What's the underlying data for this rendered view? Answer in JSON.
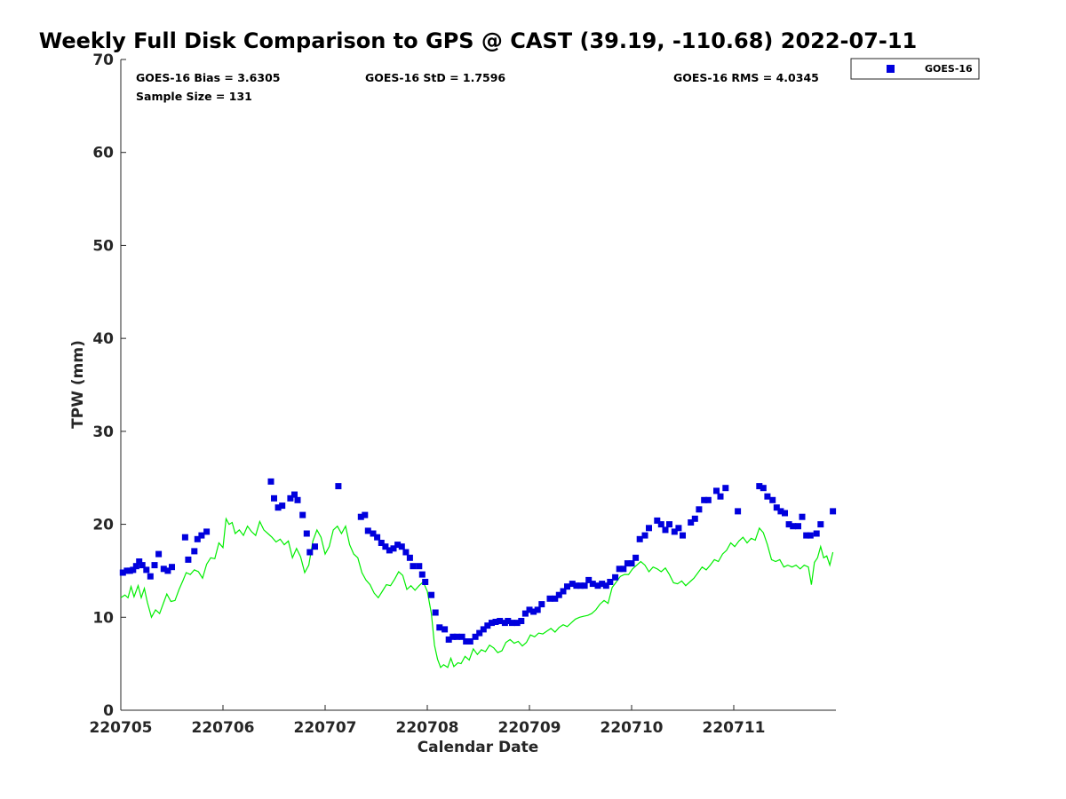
{
  "chart_data": {
    "type": "scatter",
    "title": "Weekly Full Disk Comparison to GPS @ CAST (39.19, -110.68) 2022-07-11",
    "xlabel": "Calendar Date",
    "ylabel": "TPW (mm)",
    "ylim": [
      0,
      70
    ],
    "yticks": [
      0,
      10,
      20,
      30,
      40,
      50,
      60,
      70
    ],
    "xticks": [
      "220705",
      "220706",
      "220707",
      "220708",
      "220709",
      "220710",
      "220711"
    ],
    "xlim_days": [
      5,
      12
    ],
    "grid": false,
    "legend_position": "top-right",
    "stats": {
      "bias": "GOES-16 Bias = 3.6305",
      "std": "GOES-16 StD = 1.7596",
      "rms": "GOES-16 RMS = 4.0345",
      "sample": "Sample Size = 131"
    },
    "series": [
      {
        "name": "GOES-16",
        "kind": "scatter",
        "color": "#0000dd",
        "marker": "square",
        "points": [
          [
            5.02,
            14.8
          ],
          [
            5.06,
            15.0
          ],
          [
            5.09,
            15.0
          ],
          [
            5.12,
            15.1
          ],
          [
            5.15,
            15.5
          ],
          [
            5.18,
            16.0
          ],
          [
            5.21,
            15.6
          ],
          [
            5.25,
            15.1
          ],
          [
            5.29,
            14.4
          ],
          [
            5.33,
            15.6
          ],
          [
            5.37,
            16.8
          ],
          [
            5.42,
            15.2
          ],
          [
            5.46,
            15.0
          ],
          [
            5.5,
            15.4
          ],
          [
            5.63,
            18.6
          ],
          [
            5.66,
            16.2
          ],
          [
            5.72,
            17.1
          ],
          [
            5.75,
            18.4
          ],
          [
            5.79,
            18.8
          ],
          [
            5.84,
            19.2
          ],
          [
            6.47,
            24.6
          ],
          [
            6.5,
            22.8
          ],
          [
            6.54,
            21.8
          ],
          [
            6.58,
            22.0
          ],
          [
            6.66,
            22.8
          ],
          [
            6.7,
            23.2
          ],
          [
            6.73,
            22.6
          ],
          [
            6.78,
            21.0
          ],
          [
            6.82,
            19.0
          ],
          [
            6.85,
            17.0
          ],
          [
            6.9,
            17.6
          ],
          [
            7.13,
            24.1
          ],
          [
            7.35,
            20.8
          ],
          [
            7.39,
            21.0
          ],
          [
            7.42,
            19.3
          ],
          [
            7.47,
            19.0
          ],
          [
            7.51,
            18.6
          ],
          [
            7.55,
            18.0
          ],
          [
            7.59,
            17.6
          ],
          [
            7.63,
            17.2
          ],
          [
            7.67,
            17.4
          ],
          [
            7.71,
            17.8
          ],
          [
            7.75,
            17.6
          ],
          [
            7.79,
            17.0
          ],
          [
            7.83,
            16.4
          ],
          [
            7.86,
            15.5
          ],
          [
            7.92,
            15.5
          ],
          [
            7.95,
            14.6
          ],
          [
            7.98,
            13.8
          ],
          [
            8.04,
            12.4
          ],
          [
            8.08,
            10.5
          ],
          [
            8.12,
            8.9
          ],
          [
            8.17,
            8.7
          ],
          [
            8.21,
            7.6
          ],
          [
            8.25,
            7.9
          ],
          [
            8.29,
            7.9
          ],
          [
            8.34,
            7.9
          ],
          [
            8.38,
            7.4
          ],
          [
            8.42,
            7.4
          ],
          [
            8.47,
            7.9
          ],
          [
            8.51,
            8.3
          ],
          [
            8.55,
            8.7
          ],
          [
            8.59,
            9.1
          ],
          [
            8.63,
            9.4
          ],
          [
            8.67,
            9.5
          ],
          [
            8.71,
            9.6
          ],
          [
            8.76,
            9.4
          ],
          [
            8.79,
            9.6
          ],
          [
            8.83,
            9.4
          ],
          [
            8.88,
            9.4
          ],
          [
            8.92,
            9.6
          ],
          [
            8.96,
            10.4
          ],
          [
            9.0,
            10.8
          ],
          [
            9.04,
            10.6
          ],
          [
            9.08,
            10.8
          ],
          [
            9.12,
            11.4
          ],
          [
            9.2,
            12.0
          ],
          [
            9.25,
            12.0
          ],
          [
            9.29,
            12.4
          ],
          [
            9.33,
            12.8
          ],
          [
            9.37,
            13.3
          ],
          [
            9.42,
            13.6
          ],
          [
            9.46,
            13.4
          ],
          [
            9.5,
            13.4
          ],
          [
            9.54,
            13.4
          ],
          [
            9.58,
            14.0
          ],
          [
            9.62,
            13.6
          ],
          [
            9.67,
            13.4
          ],
          [
            9.71,
            13.6
          ],
          [
            9.75,
            13.4
          ],
          [
            9.79,
            13.8
          ],
          [
            9.84,
            14.3
          ],
          [
            9.88,
            15.2
          ],
          [
            9.92,
            15.2
          ],
          [
            9.96,
            15.8
          ],
          [
            10.0,
            15.8
          ],
          [
            10.04,
            16.4
          ],
          [
            10.08,
            18.4
          ],
          [
            10.13,
            18.8
          ],
          [
            10.17,
            19.6
          ],
          [
            10.25,
            20.4
          ],
          [
            10.29,
            20.0
          ],
          [
            10.33,
            19.4
          ],
          [
            10.37,
            20.0
          ],
          [
            10.42,
            19.2
          ],
          [
            10.46,
            19.6
          ],
          [
            10.5,
            18.8
          ],
          [
            10.58,
            20.2
          ],
          [
            10.62,
            20.6
          ],
          [
            10.66,
            21.6
          ],
          [
            10.71,
            22.6
          ],
          [
            10.75,
            22.6
          ],
          [
            10.83,
            23.6
          ],
          [
            10.87,
            23.0
          ],
          [
            10.92,
            23.9
          ],
          [
            11.04,
            21.4
          ],
          [
            11.25,
            24.1
          ],
          [
            11.29,
            23.9
          ],
          [
            11.33,
            23.0
          ],
          [
            11.38,
            22.6
          ],
          [
            11.42,
            21.8
          ],
          [
            11.46,
            21.4
          ],
          [
            11.5,
            21.2
          ],
          [
            11.54,
            20.0
          ],
          [
            11.58,
            19.8
          ],
          [
            11.63,
            19.8
          ],
          [
            11.67,
            20.8
          ],
          [
            11.71,
            18.8
          ],
          [
            11.75,
            18.8
          ],
          [
            11.81,
            19.0
          ],
          [
            11.85,
            20.0
          ],
          [
            11.97,
            21.4
          ]
        ]
      },
      {
        "name": "",
        "kind": "line",
        "color": "#00ee00",
        "points": [
          [
            5.0,
            12.1
          ],
          [
            5.04,
            12.4
          ],
          [
            5.07,
            12.1
          ],
          [
            5.1,
            13.3
          ],
          [
            5.13,
            12.2
          ],
          [
            5.17,
            13.4
          ],
          [
            5.2,
            12.1
          ],
          [
            5.23,
            13.1
          ],
          [
            5.26,
            11.6
          ],
          [
            5.3,
            10.0
          ],
          [
            5.34,
            10.8
          ],
          [
            5.38,
            10.4
          ],
          [
            5.42,
            11.6
          ],
          [
            5.45,
            12.5
          ],
          [
            5.49,
            11.7
          ],
          [
            5.53,
            11.8
          ],
          [
            5.57,
            13.0
          ],
          [
            5.61,
            14.0
          ],
          [
            5.64,
            14.8
          ],
          [
            5.68,
            14.6
          ],
          [
            5.72,
            15.1
          ],
          [
            5.76,
            14.9
          ],
          [
            5.8,
            14.2
          ],
          [
            5.84,
            15.7
          ],
          [
            5.88,
            16.4
          ],
          [
            5.92,
            16.3
          ],
          [
            5.96,
            18.0
          ],
          [
            6.0,
            17.5
          ],
          [
            6.03,
            20.6
          ],
          [
            6.06,
            20.0
          ],
          [
            6.09,
            20.2
          ],
          [
            6.12,
            19.0
          ],
          [
            6.16,
            19.4
          ],
          [
            6.2,
            18.8
          ],
          [
            6.24,
            19.8
          ],
          [
            6.28,
            19.2
          ],
          [
            6.32,
            18.8
          ],
          [
            6.36,
            20.3
          ],
          [
            6.4,
            19.4
          ],
          [
            6.44,
            19.0
          ],
          [
            6.48,
            18.6
          ],
          [
            6.52,
            18.1
          ],
          [
            6.56,
            18.4
          ],
          [
            6.6,
            17.8
          ],
          [
            6.64,
            18.2
          ],
          [
            6.68,
            16.4
          ],
          [
            6.72,
            17.4
          ],
          [
            6.76,
            16.5
          ],
          [
            6.8,
            14.8
          ],
          [
            6.84,
            15.6
          ],
          [
            6.88,
            18.2
          ],
          [
            6.92,
            19.4
          ],
          [
            6.96,
            18.6
          ],
          [
            7.0,
            16.8
          ],
          [
            7.04,
            17.6
          ],
          [
            7.08,
            19.4
          ],
          [
            7.12,
            19.8
          ],
          [
            7.16,
            19.0
          ],
          [
            7.2,
            19.8
          ],
          [
            7.24,
            17.8
          ],
          [
            7.28,
            16.8
          ],
          [
            7.32,
            16.4
          ],
          [
            7.36,
            14.8
          ],
          [
            7.4,
            14.0
          ],
          [
            7.44,
            13.5
          ],
          [
            7.48,
            12.6
          ],
          [
            7.52,
            12.1
          ],
          [
            7.56,
            12.8
          ],
          [
            7.6,
            13.5
          ],
          [
            7.64,
            13.4
          ],
          [
            7.68,
            14.1
          ],
          [
            7.72,
            14.9
          ],
          [
            7.76,
            14.5
          ],
          [
            7.8,
            13.0
          ],
          [
            7.84,
            13.4
          ],
          [
            7.88,
            12.9
          ],
          [
            7.92,
            13.4
          ],
          [
            7.96,
            13.8
          ],
          [
            8.0,
            12.8
          ],
          [
            8.04,
            10.4
          ],
          [
            8.07,
            7.0
          ],
          [
            8.1,
            5.5
          ],
          [
            8.13,
            4.6
          ],
          [
            8.16,
            4.9
          ],
          [
            8.2,
            4.6
          ],
          [
            8.23,
            5.6
          ],
          [
            8.26,
            4.7
          ],
          [
            8.3,
            5.1
          ],
          [
            8.33,
            5.0
          ],
          [
            8.37,
            5.8
          ],
          [
            8.41,
            5.4
          ],
          [
            8.45,
            6.6
          ],
          [
            8.49,
            6.0
          ],
          [
            8.53,
            6.5
          ],
          [
            8.57,
            6.3
          ],
          [
            8.61,
            7.0
          ],
          [
            8.65,
            6.7
          ],
          [
            8.69,
            6.2
          ],
          [
            8.73,
            6.4
          ],
          [
            8.77,
            7.3
          ],
          [
            8.81,
            7.6
          ],
          [
            8.85,
            7.2
          ],
          [
            8.89,
            7.4
          ],
          [
            8.93,
            6.9
          ],
          [
            8.97,
            7.3
          ],
          [
            9.01,
            8.1
          ],
          [
            9.05,
            7.9
          ],
          [
            9.09,
            8.3
          ],
          [
            9.13,
            8.2
          ],
          [
            9.17,
            8.5
          ],
          [
            9.21,
            8.8
          ],
          [
            9.25,
            8.4
          ],
          [
            9.29,
            8.9
          ],
          [
            9.33,
            9.2
          ],
          [
            9.37,
            9.0
          ],
          [
            9.41,
            9.4
          ],
          [
            9.45,
            9.8
          ],
          [
            9.49,
            10.0
          ],
          [
            9.53,
            10.1
          ],
          [
            9.57,
            10.2
          ],
          [
            9.61,
            10.4
          ],
          [
            9.65,
            10.8
          ],
          [
            9.69,
            11.4
          ],
          [
            9.73,
            11.8
          ],
          [
            9.77,
            11.5
          ],
          [
            9.81,
            13.2
          ],
          [
            9.85,
            13.8
          ],
          [
            9.89,
            14.4
          ],
          [
            9.93,
            14.6
          ],
          [
            9.97,
            14.6
          ],
          [
            10.01,
            15.2
          ],
          [
            10.05,
            15.6
          ],
          [
            10.09,
            16.0
          ],
          [
            10.13,
            15.6
          ],
          [
            10.17,
            14.9
          ],
          [
            10.21,
            15.4
          ],
          [
            10.25,
            15.2
          ],
          [
            10.29,
            14.9
          ],
          [
            10.33,
            15.3
          ],
          [
            10.37,
            14.6
          ],
          [
            10.41,
            13.7
          ],
          [
            10.45,
            13.6
          ],
          [
            10.49,
            13.9
          ],
          [
            10.53,
            13.4
          ],
          [
            10.57,
            13.8
          ],
          [
            10.61,
            14.2
          ],
          [
            10.65,
            14.8
          ],
          [
            10.69,
            15.4
          ],
          [
            10.73,
            15.1
          ],
          [
            10.77,
            15.6
          ],
          [
            10.81,
            16.2
          ],
          [
            10.85,
            16.0
          ],
          [
            10.89,
            16.8
          ],
          [
            10.93,
            17.2
          ],
          [
            10.97,
            18.0
          ],
          [
            11.01,
            17.6
          ],
          [
            11.05,
            18.2
          ],
          [
            11.09,
            18.6
          ],
          [
            11.13,
            18.0
          ],
          [
            11.17,
            18.5
          ],
          [
            11.21,
            18.3
          ],
          [
            11.25,
            19.6
          ],
          [
            11.29,
            19.1
          ],
          [
            11.33,
            17.8
          ],
          [
            11.37,
            16.2
          ],
          [
            11.41,
            16.0
          ],
          [
            11.45,
            16.2
          ],
          [
            11.49,
            15.4
          ],
          [
            11.53,
            15.6
          ],
          [
            11.57,
            15.4
          ],
          [
            11.61,
            15.6
          ],
          [
            11.65,
            15.2
          ],
          [
            11.69,
            15.6
          ],
          [
            11.73,
            15.4
          ],
          [
            11.76,
            13.5
          ],
          [
            11.79,
            15.9
          ],
          [
            11.82,
            16.4
          ],
          [
            11.85,
            17.6
          ],
          [
            11.88,
            16.4
          ],
          [
            11.91,
            16.6
          ],
          [
            11.94,
            15.6
          ],
          [
            11.97,
            17.0
          ]
        ]
      }
    ]
  }
}
